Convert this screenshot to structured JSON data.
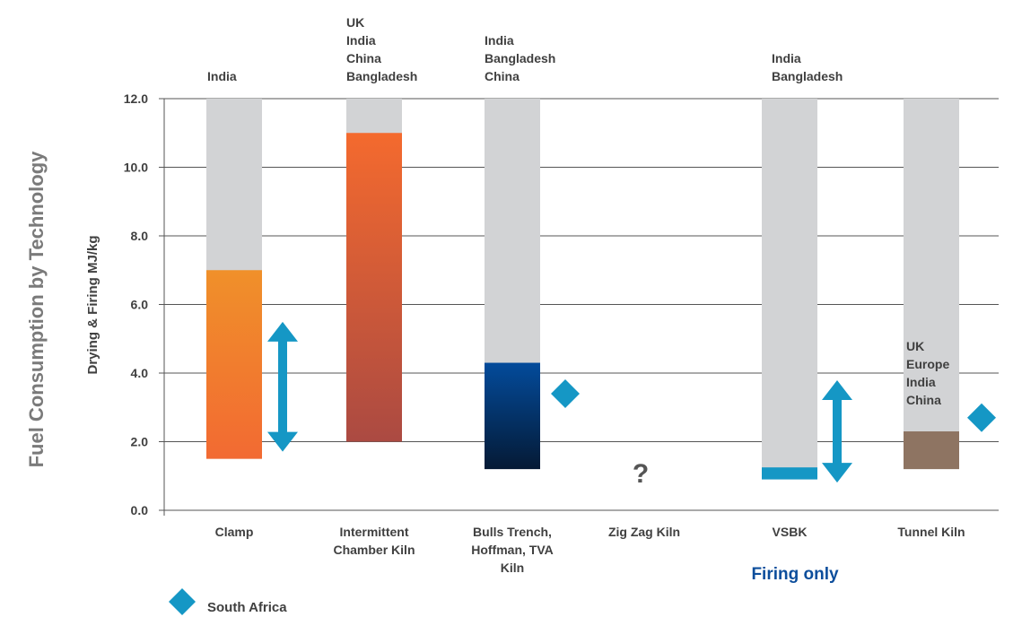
{
  "chart_data": {
    "type": "bar",
    "title": "Fuel Consumption by Technology",
    "ylabel": "Drying & Firing MJ/kg",
    "ylim": [
      0,
      12
    ],
    "yticks": [
      "0.0",
      "2.0",
      "4.0",
      "6.0",
      "8.0",
      "10.0",
      "12.0"
    ],
    "grid": true,
    "categories": [
      {
        "label": [
          "Clamp"
        ],
        "countries": [
          "India"
        ],
        "range": [
          1.5,
          7.0
        ],
        "background_to": 12,
        "colors": [
          "#f0902a",
          "#f26a32"
        ],
        "sa_arrow": [
          2.1,
          5.1
        ],
        "sa_diamond": null
      },
      {
        "label": [
          "Intermittent",
          "Chamber Kiln"
        ],
        "countries": [
          "UK",
          "India",
          "China",
          "Bangladesh"
        ],
        "range": [
          2.0,
          11.0
        ],
        "background_to": 12,
        "colors": [
          "#f46a2e",
          "#ab4a42"
        ],
        "sa_arrow": null,
        "sa_diamond": null
      },
      {
        "label": [
          "Bulls Trench,",
          "Hoffman, TVA",
          "Kiln"
        ],
        "countries": [
          "India",
          "Bangladesh",
          "China"
        ],
        "range": [
          1.2,
          4.3
        ],
        "background_to": 12,
        "colors": [
          "#034b9b",
          "#051a35"
        ],
        "sa_arrow": null,
        "sa_diamond": 3.4
      },
      {
        "label": [
          "Zig Zag Kiln"
        ],
        "countries": [],
        "range": null,
        "background_to": null,
        "colors": null,
        "sa_arrow": null,
        "sa_diamond": null,
        "unknown_mark": "?"
      },
      {
        "label": [
          "VSBK"
        ],
        "countries": [
          "India",
          "Bangladesh"
        ],
        "range": [
          0.9,
          1.25
        ],
        "background_to": 12,
        "colors": [
          "#1597c5",
          "#1597c5"
        ],
        "sa_arrow": [
          1.2,
          3.4
        ],
        "sa_diamond": null
      },
      {
        "label": [
          "Tunnel Kiln"
        ],
        "countries": [
          "UK",
          "Europe",
          "India",
          "China"
        ],
        "range": [
          1.2,
          2.3
        ],
        "background_to": 12,
        "colors": [
          "#8e7462",
          "#8e7462"
        ],
        "sa_arrow": null,
        "sa_diamond": 2.7
      }
    ],
    "annotations": {
      "firing_only": "Firing only"
    },
    "legend": {
      "placement": "bottom-left",
      "items": [
        {
          "marker": "diamond",
          "label": "South Africa",
          "color": "#1597c5"
        }
      ]
    },
    "colors": {
      "background_bar": "#d2d3d5",
      "grid": "#555555",
      "sa_marker": "#1597c5"
    }
  }
}
